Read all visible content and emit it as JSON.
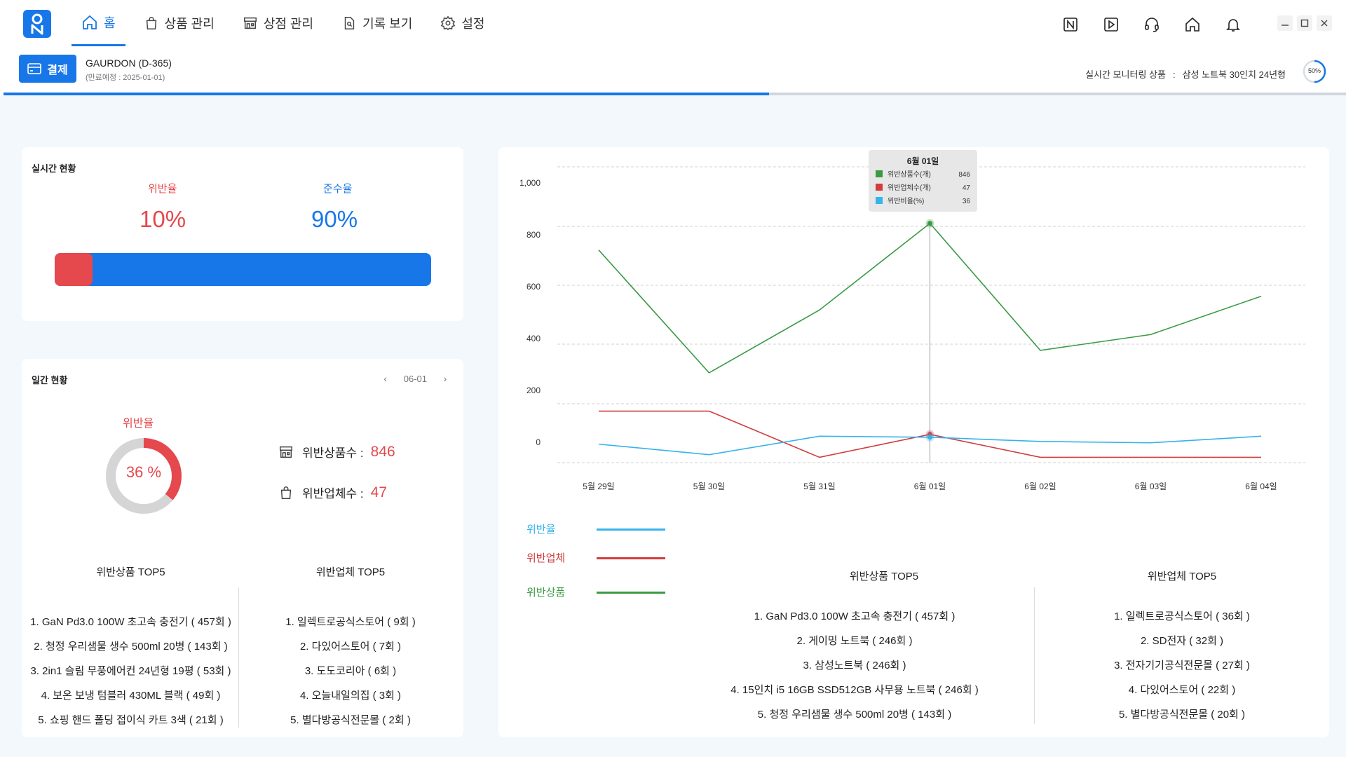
{
  "app": {
    "nav": [
      {
        "label": "홈",
        "icon": "home-icon",
        "active": true
      },
      {
        "label": "상품 관리",
        "icon": "shopping-bag-icon",
        "active": false
      },
      {
        "label": "상점 관리",
        "icon": "store-icon",
        "active": false
      },
      {
        "label": "기록 보기",
        "icon": "document-search-icon",
        "active": false
      },
      {
        "label": "설정",
        "icon": "gear-icon",
        "active": false
      }
    ],
    "top_icons": [
      "naver-icon",
      "play-icon",
      "headset-icon",
      "home-icon",
      "bell-icon"
    ],
    "accent": "#1877e8",
    "danger": "#e5484d"
  },
  "subheader": {
    "pay_label": "결제",
    "account_name": "GAURDON (D-365)",
    "account_expiry": "(만료예정 : 2025-01-01)",
    "monitor_label": "실시간 모니터링 상품",
    "monitor_sep": ":",
    "monitor_product": "삼성 노트북 30인치 24년형",
    "monitor_percent_text": "50%",
    "monitor_percent": 50,
    "progress": 0.57
  },
  "realtime": {
    "title": "실시간 현황",
    "violation_label": "위반율",
    "violation_value": "10%",
    "compliance_label": "준수율",
    "compliance_value": "90%",
    "violation_fraction": 0.1
  },
  "daily": {
    "title": "일간 현황",
    "date": "06-01",
    "donut_label": "위반율",
    "donut_value_text": "36 %",
    "donut_value": 36,
    "products_label": "위반상품수 :",
    "products_value": "846",
    "sellers_label": "위반업체수 :",
    "sellers_value": "47",
    "top5_products_title": "위반상품 TOP5",
    "top5_products": [
      "1. GaN Pd3.0 100W 초고속 충전기 ( 457회 )",
      "2. 청정 우리샘물 생수 500ml 20병 ( 143회 )",
      "3. 2in1 슬림 무풍에어컨 24년형 19평 ( 53회 )",
      "4. 보온 보냉 텀블러 430ML 블랙 ( 49회 )",
      "5. 쇼핑 핸드 폴딩 접이식 카트 3색 ( 21회 )"
    ],
    "top5_sellers_title": "위반업체 TOP5",
    "top5_sellers": [
      "1. 일렉트로공식스토어 ( 9회 )",
      "2. 다있어스토어 ( 7회 )",
      "3. 도도코리아 ( 6회 )",
      "4. 오늘내일의집 ( 3회 )",
      "5. 별다방공식전문몰 ( 2회 )"
    ]
  },
  "weekly": {
    "legend": [
      {
        "label": "위반율",
        "color": "#35b3ea"
      },
      {
        "label": "위반업체",
        "color": "#d13c3c"
      },
      {
        "label": "위반상품",
        "color": "#3a9a44"
      }
    ],
    "top5_products_title": "위반상품 TOP5",
    "top5_products": [
      "1. GaN Pd3.0 100W 초고속 충전기 ( 457회 )",
      "2. 게이밍 노트북 ( 246회 )",
      "3. 삼성노트북 ( 246회 )",
      "4. 15인치 i5 16GB SSD512GB 사무용 노트북 ( 246회 )",
      "5. 청정 우리샘물 생수 500ml 20병 ( 143회 )"
    ],
    "top5_sellers_title": "위반업체 TOP5",
    "top5_sellers": [
      "1. 일렉트로공식스토어 ( 36회 )",
      "2. SD전자 ( 32회 )",
      "3. 전자기기공식전문몰 ( 27회 )",
      "4. 다있어스토어 ( 22회 )",
      "5. 별다방공식전문몰 ( 20회 )"
    ]
  },
  "chart_data": {
    "type": "line",
    "x": [
      "5월 29일",
      "5월 30일",
      "5월 31일",
      "6월 01일",
      "6월 02일",
      "6월 03일",
      "6월 04일"
    ],
    "y_ticks": [
      "1,000",
      "800",
      "600",
      "400",
      "200",
      "0"
    ],
    "ylim": [
      -60,
      1060
    ],
    "grid": true,
    "series": [
      {
        "name": "위반상품수(개)",
        "color": "#3a9a44",
        "values": [
          745,
          280,
          518,
          846,
          365,
          425,
          570
        ]
      },
      {
        "name": "위반업체수(개)",
        "color": "#d13c3c",
        "values": [
          135,
          135,
          -40,
          47,
          -40,
          -40,
          -40
        ]
      },
      {
        "name": "위반비율(%)",
        "color": "#35b3ea",
        "values": [
          10,
          -30,
          40,
          36,
          20,
          15,
          40
        ]
      }
    ],
    "tooltip": {
      "title": "6월 01일",
      "index": 3,
      "rows": [
        {
          "label": "위반상품수(개)",
          "value": "846",
          "color": "#3a9a44"
        },
        {
          "label": "위반업체수(개)",
          "value": "47",
          "color": "#d13c3c"
        },
        {
          "label": "위반비율(%)",
          "value": "36",
          "color": "#35b3ea"
        }
      ]
    }
  }
}
